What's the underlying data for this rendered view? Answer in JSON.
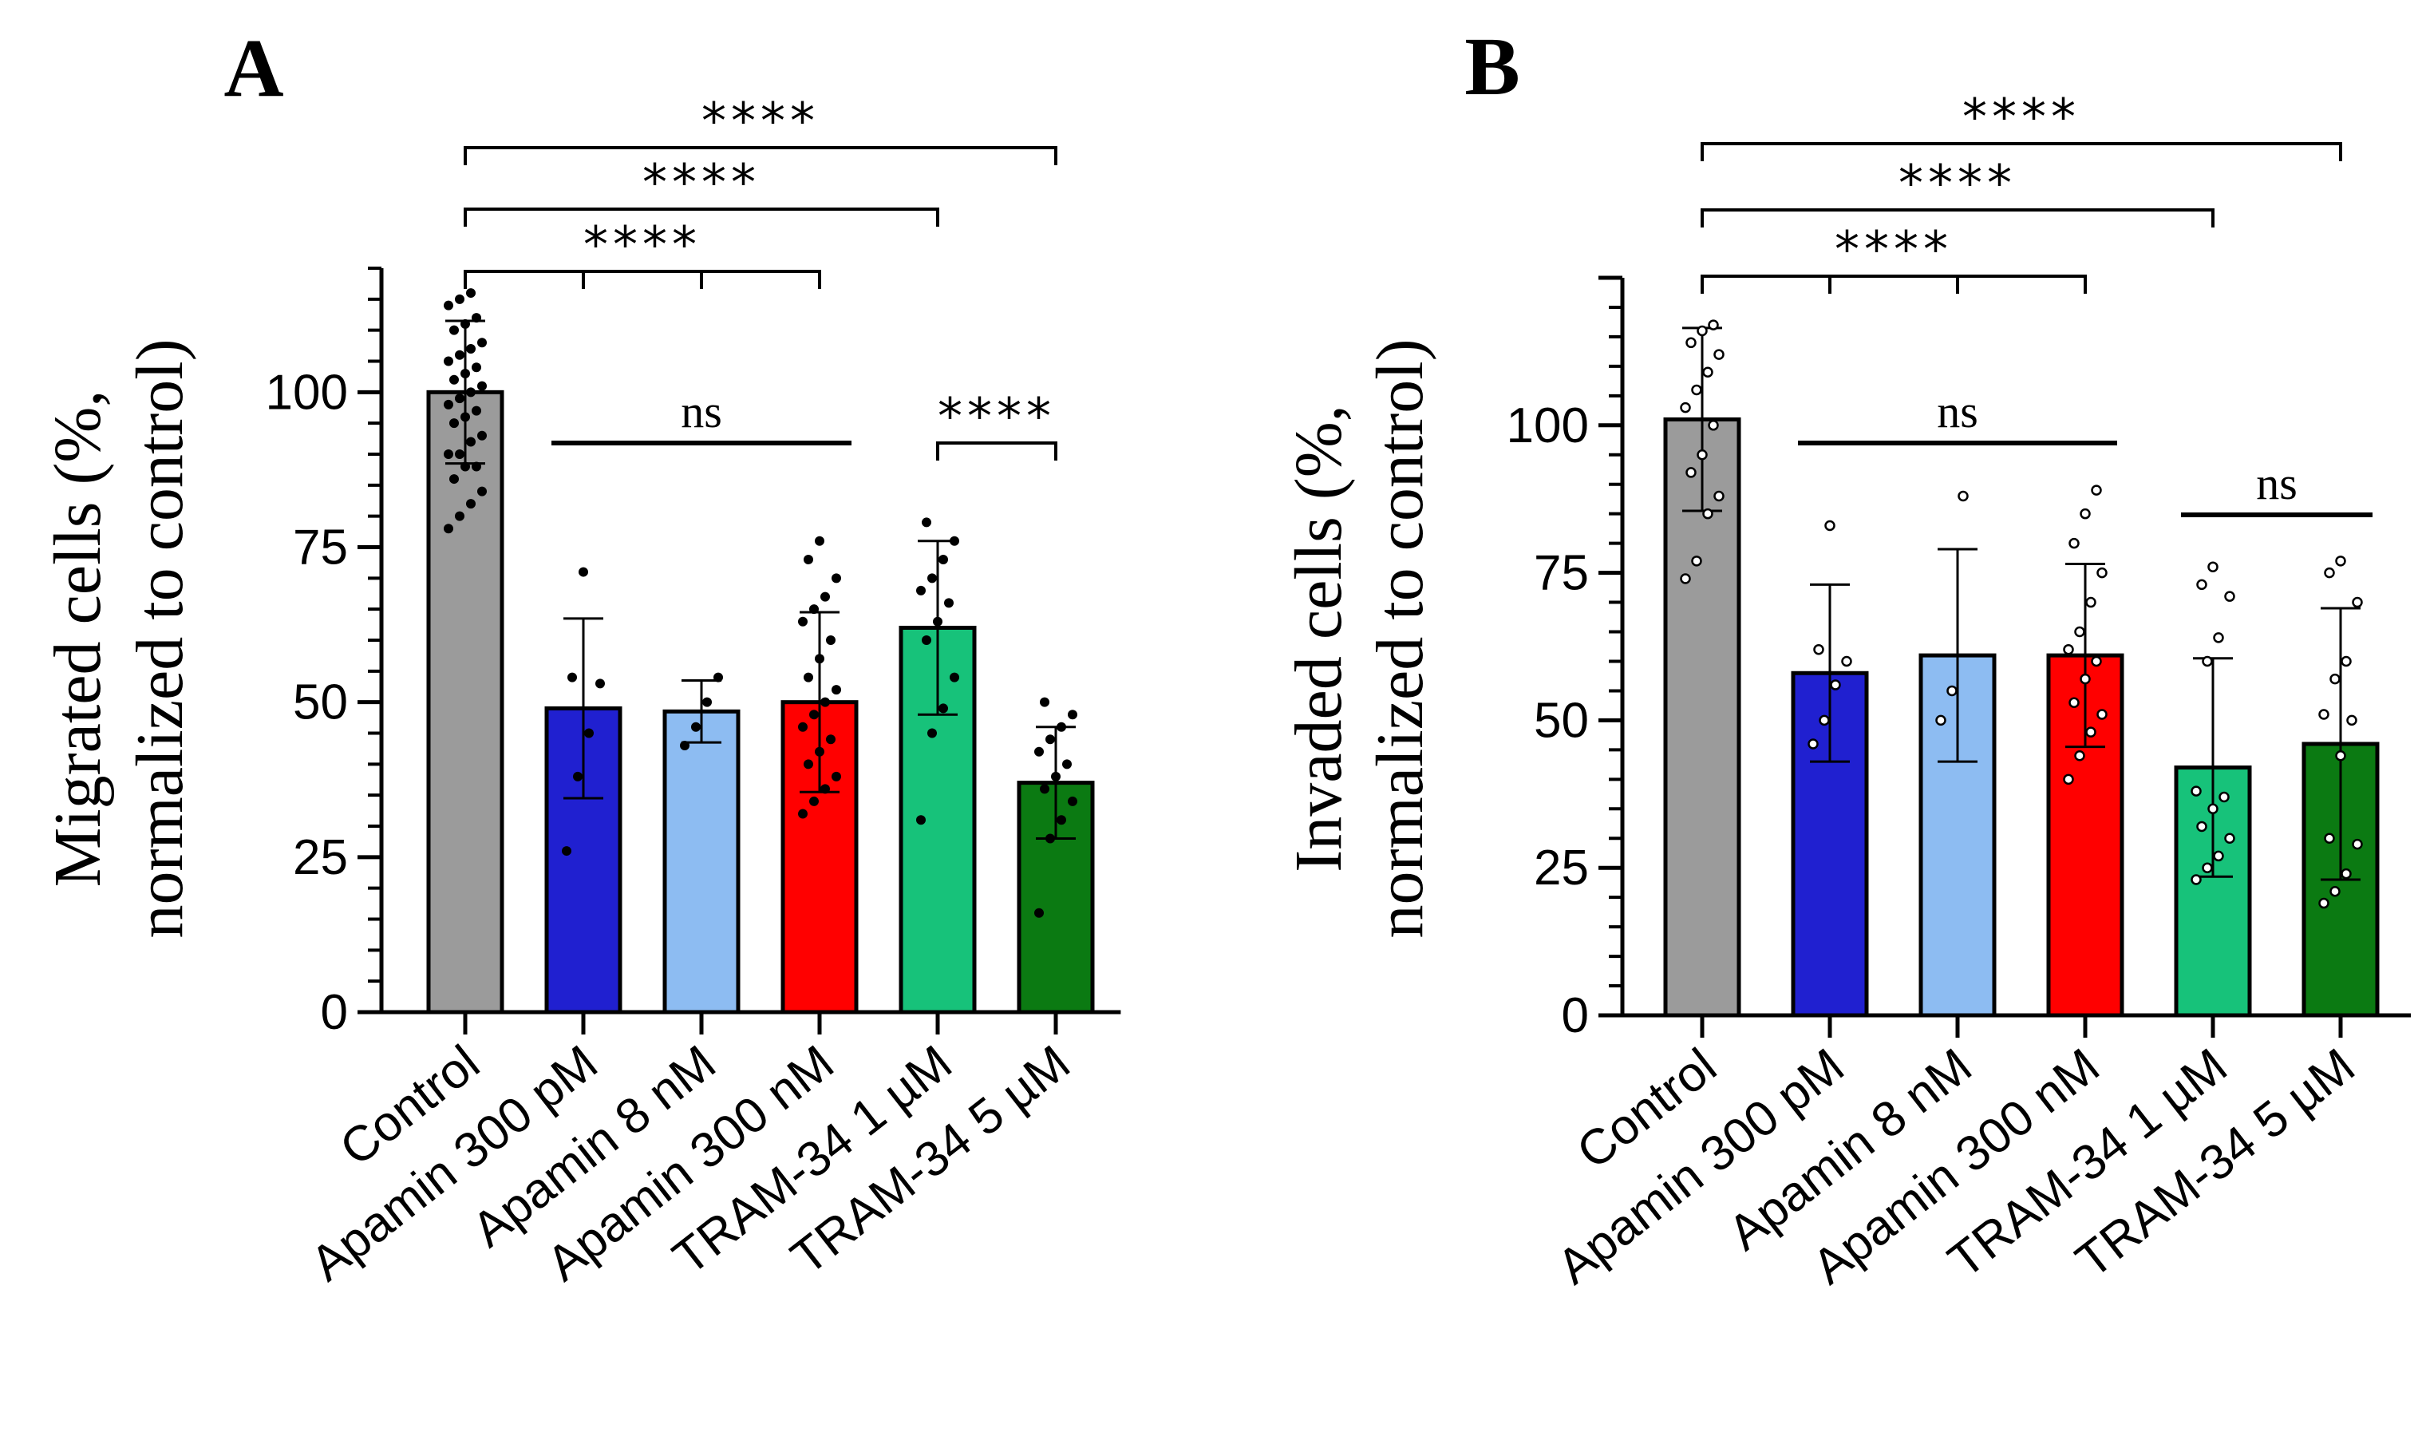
{
  "chart_data": [
    {
      "type": "bar",
      "panel": "A",
      "ylabel_line1": "Migrated cells (%,",
      "ylabel_line2": "normalized to control)",
      "ylim": [
        0,
        120
      ],
      "yticks": [
        0,
        25,
        50,
        75,
        100
      ],
      "categories": [
        "Control",
        "Apamin 300 pM",
        "Apamin 8 nM",
        "Apamin 300 nM",
        "TRAM-34 1 µM",
        "TRAM-34 5 µM"
      ],
      "values": [
        100,
        49,
        48.5,
        50,
        62,
        37
      ],
      "errors": [
        11.5,
        14.5,
        5,
        14.5,
        14,
        9
      ],
      "colors": [
        "#9b9b9b",
        "#2020d0",
        "#8dbcf2",
        "#ff0000",
        "#17c27a",
        "#0b7a12"
      ],
      "points": [
        [
          78,
          80,
          82,
          84,
          86,
          88,
          88,
          90,
          90,
          92,
          93,
          95,
          96,
          97,
          98,
          99,
          100,
          101,
          102,
          103,
          104,
          105,
          106,
          107,
          108,
          110,
          111,
          112,
          114,
          115,
          116
        ],
        [
          26,
          38,
          45,
          53,
          54,
          71
        ],
        [
          43,
          46,
          50,
          54
        ],
        [
          32,
          34,
          36,
          38,
          40,
          42,
          44,
          46,
          48,
          50,
          52,
          54,
          57,
          60,
          63,
          65,
          67,
          70,
          73,
          76
        ],
        [
          31,
          45,
          49,
          54,
          60,
          63,
          66,
          68,
          70,
          73,
          76,
          79
        ],
        [
          16,
          28,
          31,
          34,
          36,
          38,
          40,
          42,
          44,
          46,
          48,
          50
        ]
      ],
      "hollow_points": false,
      "brackets": [
        {
          "from": 0,
          "to": 3,
          "ticks": [
            1,
            2
          ],
          "label": "****"
        },
        {
          "from": 0,
          "to": 4,
          "ticks": [],
          "label": "****"
        },
        {
          "from": 0,
          "to": 5,
          "ticks": [],
          "label": "****"
        },
        {
          "from": 4,
          "to": 5,
          "ticks": [],
          "label": "****"
        }
      ],
      "ns_lines": [
        {
          "from": 1,
          "to": 3,
          "label": "ns"
        }
      ]
    },
    {
      "type": "bar",
      "panel": "B",
      "ylabel_line1": "Invaded cells (%,",
      "ylabel_line2": "normalized to control)",
      "ylim": [
        0,
        125
      ],
      "yticks": [
        0,
        25,
        50,
        75,
        100
      ],
      "categories": [
        "Control",
        "Apamin 300 pM",
        "Apamin 8 nM",
        "Apamin 300 nM",
        "TRAM-34 1 µM",
        "TRAM-34 5 µM"
      ],
      "values": [
        101,
        58,
        61,
        61,
        42,
        46
      ],
      "errors": [
        15.5,
        15,
        18,
        15.5,
        18.5,
        23
      ],
      "colors": [
        "#9b9b9b",
        "#2020d0",
        "#8dbcf2",
        "#ff0000",
        "#17c27a",
        "#0b7a12"
      ],
      "points": [
        [
          74,
          77,
          85,
          88,
          92,
          95,
          100,
          103,
          106,
          109,
          112,
          114,
          116,
          117
        ],
        [
          46,
          50,
          56,
          60,
          62,
          83
        ],
        [
          50,
          55,
          88
        ],
        [
          40,
          44,
          48,
          51,
          53,
          57,
          60,
          62,
          65,
          70,
          75,
          80,
          85,
          89
        ],
        [
          23,
          25,
          27,
          30,
          32,
          35,
          37,
          38,
          60,
          64,
          71,
          73,
          76
        ],
        [
          19,
          21,
          24,
          29,
          30,
          44,
          50,
          51,
          57,
          60,
          70,
          75,
          77
        ]
      ],
      "hollow_points": true,
      "brackets": [
        {
          "from": 0,
          "to": 3,
          "ticks": [
            1,
            2
          ],
          "label": "****"
        },
        {
          "from": 0,
          "to": 4,
          "ticks": [],
          "label": "****"
        },
        {
          "from": 0,
          "to": 5,
          "ticks": [],
          "label": "****"
        }
      ],
      "ns_lines": [
        {
          "from": 1,
          "to": 3,
          "label": "ns"
        },
        {
          "from": 4,
          "to": 5,
          "label": "ns"
        }
      ]
    }
  ]
}
